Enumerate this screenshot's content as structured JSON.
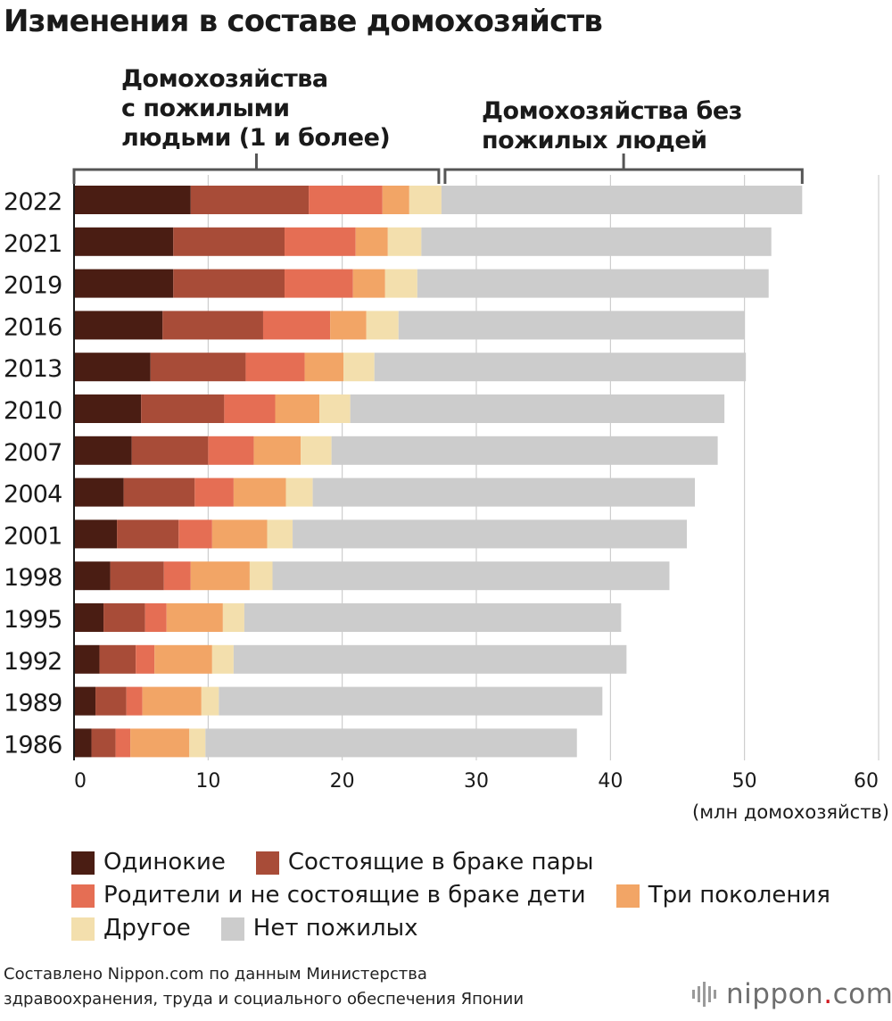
{
  "title": "Изменения в составе домохозяйств",
  "chart_data": {
    "type": "bar",
    "orientation": "horizontal",
    "stacked": true,
    "categories": [
      "2022",
      "2021",
      "2019",
      "2016",
      "2013",
      "2010",
      "2007",
      "2004",
      "2001",
      "1998",
      "1995",
      "1992",
      "1989",
      "1986"
    ],
    "series": [
      {
        "name": "Одинокие",
        "color": "#4a1d13",
        "values": [
          8.7,
          7.4,
          7.4,
          6.6,
          5.7,
          5.0,
          4.3,
          3.7,
          3.2,
          2.7,
          2.2,
          1.9,
          1.6,
          1.3
        ]
      },
      {
        "name": "Состоящие в браке пары",
        "color": "#a84c38",
        "values": [
          8.8,
          8.3,
          8.3,
          7.5,
          7.1,
          6.2,
          5.7,
          5.3,
          4.6,
          4.0,
          3.1,
          2.7,
          2.3,
          1.8
        ]
      },
      {
        "name": "Родители и не состоящие в браке дети",
        "color": "#e56e54",
        "values": [
          5.5,
          5.3,
          5.1,
          5.0,
          4.4,
          3.8,
          3.4,
          2.9,
          2.5,
          2.0,
          1.6,
          1.4,
          1.2,
          1.1
        ]
      },
      {
        "name": "Три поколения",
        "color": "#f2a566",
        "values": [
          2.0,
          2.4,
          2.4,
          2.7,
          2.9,
          3.3,
          3.5,
          3.9,
          4.1,
          4.4,
          4.2,
          4.3,
          4.4,
          4.4
        ]
      },
      {
        "name": "Другое",
        "color": "#f3dfad",
        "values": [
          2.4,
          2.5,
          2.4,
          2.4,
          2.3,
          2.3,
          2.3,
          2.0,
          1.9,
          1.7,
          1.6,
          1.6,
          1.3,
          1.2
        ]
      },
      {
        "name": "Нет пожилых",
        "color": "#cccccc",
        "values": [
          26.9,
          26.1,
          26.2,
          25.8,
          27.7,
          27.9,
          28.8,
          28.5,
          29.4,
          29.6,
          28.1,
          29.3,
          28.6,
          27.7
        ]
      }
    ],
    "xlim": [
      0,
      60
    ],
    "xticks": [
      0,
      10,
      20,
      30,
      40,
      50,
      60
    ],
    "xlabel": "(млн домохозяйств)",
    "ylabel": "",
    "grid": true,
    "legend_position": "bottom",
    "group_brackets": [
      {
        "label": "Домохозяйства\nс пожилыми\nлюдьми (1 и более)",
        "from": 0,
        "to": 27.4
      },
      {
        "label": "Домохозяйства без\nпожилых людей",
        "from": 27.4,
        "to": 54.3
      }
    ]
  },
  "source": "Составлено Nippon.com по данным Министерства\nздравоохранения, труда и социального обеспечения Японии",
  "brand": {
    "name": "nippon",
    "dot": ".",
    "suffix": "com"
  }
}
